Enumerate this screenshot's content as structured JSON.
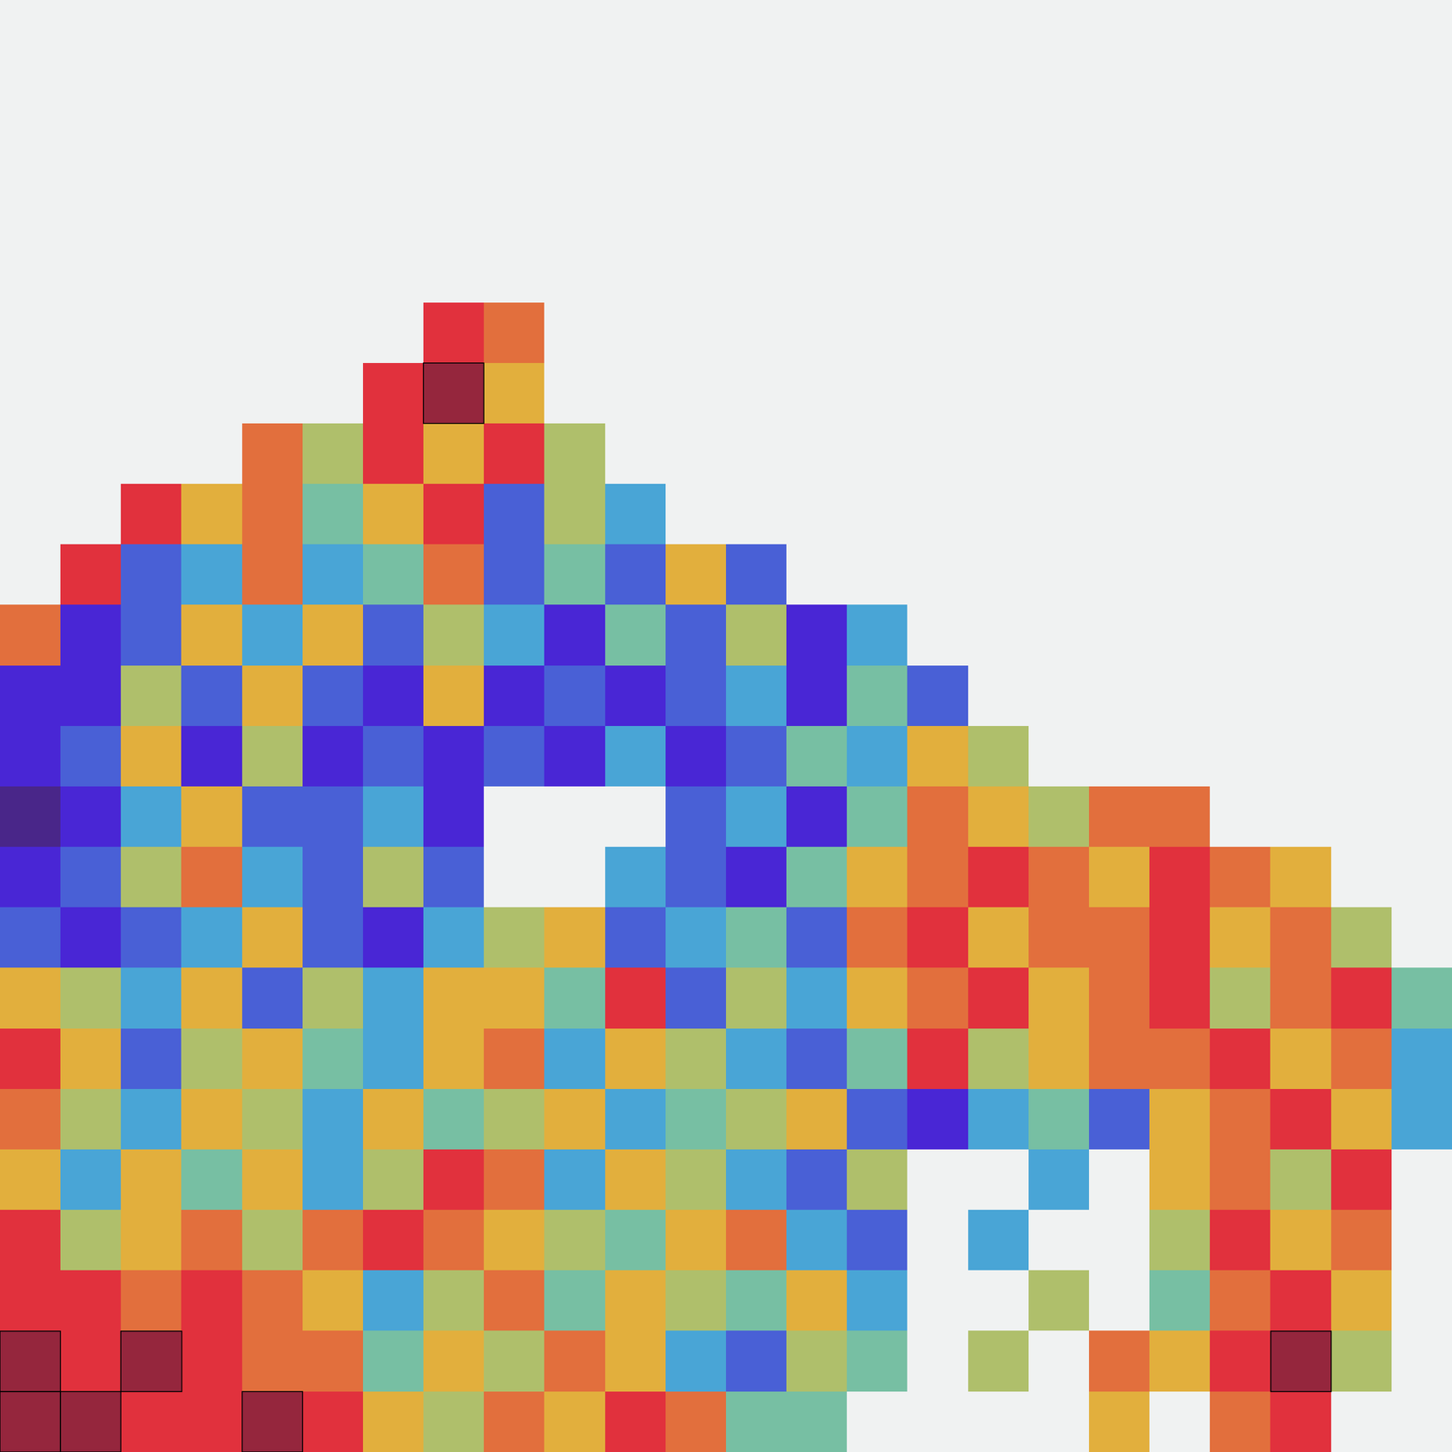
{
  "chart_data": {
    "type": "heatmap",
    "tick_labels": false,
    "grid": false,
    "zlim": [
      0,
      9
    ],
    "cells": [
      [
        null,
        null,
        null,
        null,
        null,
        null,
        null,
        null,
        null,
        null,
        null,
        null,
        null,
        null,
        null,
        null,
        null,
        null,
        null,
        null,
        null,
        null,
        null,
        null
      ],
      [
        null,
        null,
        null,
        null,
        null,
        null,
        null,
        null,
        null,
        null,
        null,
        null,
        null,
        null,
        null,
        null,
        null,
        null,
        null,
        null,
        null,
        null,
        null,
        null
      ],
      [
        null,
        null,
        null,
        null,
        null,
        null,
        null,
        null,
        null,
        null,
        null,
        null,
        null,
        null,
        null,
        null,
        null,
        null,
        null,
        null,
        null,
        null,
        null,
        null
      ],
      [
        null,
        null,
        null,
        null,
        null,
        null,
        null,
        null,
        null,
        null,
        null,
        null,
        null,
        null,
        null,
        null,
        null,
        null,
        null,
        null,
        null,
        null,
        null,
        null
      ],
      [
        null,
        null,
        null,
        null,
        null,
        null,
        null,
        null,
        null,
        null,
        null,
        null,
        null,
        null,
        null,
        null,
        null,
        null,
        null,
        null,
        null,
        null,
        null,
        null
      ],
      [
        null,
        null,
        null,
        null,
        null,
        null,
        null,
        8,
        7,
        null,
        null,
        null,
        null,
        null,
        null,
        null,
        null,
        null,
        null,
        null,
        null,
        null,
        null,
        null
      ],
      [
        null,
        null,
        null,
        null,
        null,
        null,
        8,
        9,
        6,
        null,
        null,
        null,
        null,
        null,
        null,
        null,
        null,
        null,
        null,
        null,
        null,
        null,
        null,
        null
      ],
      [
        null,
        null,
        null,
        null,
        7,
        5,
        8,
        6,
        8,
        5,
        null,
        null,
        null,
        null,
        null,
        null,
        null,
        null,
        null,
        null,
        null,
        null,
        null,
        null
      ],
      [
        null,
        null,
        8,
        6,
        7,
        4,
        6,
        8,
        2,
        5,
        3,
        null,
        null,
        null,
        null,
        null,
        null,
        null,
        null,
        null,
        null,
        null,
        null,
        null
      ],
      [
        null,
        8,
        2,
        3,
        7,
        3,
        4,
        7,
        2,
        4,
        2,
        6,
        2,
        null,
        null,
        null,
        null,
        null,
        null,
        null,
        null,
        null,
        null,
        null
      ],
      [
        7,
        1,
        2,
        6,
        3,
        6,
        2,
        5,
        3,
        1,
        4,
        2,
        5,
        1,
        3,
        null,
        null,
        null,
        null,
        null,
        null,
        null,
        null,
        null
      ],
      [
        1,
        1,
        5,
        2,
        6,
        2,
        1,
        6,
        1,
        2,
        1,
        2,
        3,
        1,
        4,
        2,
        null,
        null,
        null,
        null,
        null,
        null,
        null,
        null
      ],
      [
        1,
        2,
        6,
        1,
        5,
        1,
        2,
        1,
        2,
        1,
        3,
        1,
        2,
        4,
        3,
        6,
        5,
        null,
        null,
        null,
        null,
        null,
        null,
        null
      ],
      [
        0,
        1,
        3,
        6,
        2,
        2,
        3,
        1,
        null,
        null,
        null,
        2,
        3,
        1,
        4,
        7,
        6,
        5,
        7,
        7,
        null,
        null,
        null,
        null
      ],
      [
        1,
        2,
        5,
        7,
        3,
        2,
        5,
        2,
        null,
        null,
        3,
        2,
        1,
        4,
        6,
        7,
        8,
        7,
        6,
        8,
        7,
        6,
        null,
        null
      ],
      [
        2,
        1,
        2,
        3,
        6,
        2,
        1,
        3,
        5,
        6,
        2,
        3,
        4,
        2,
        7,
        8,
        6,
        7,
        7,
        8,
        6,
        7,
        5,
        null
      ],
      [
        6,
        5,
        3,
        6,
        2,
        5,
        3,
        6,
        6,
        4,
        8,
        2,
        5,
        3,
        6,
        7,
        8,
        6,
        7,
        8,
        5,
        7,
        8,
        4
      ],
      [
        8,
        6,
        2,
        5,
        6,
        4,
        3,
        6,
        7,
        3,
        6,
        5,
        3,
        2,
        4,
        8,
        5,
        6,
        7,
        7,
        8,
        6,
        7,
        3
      ],
      [
        7,
        5,
        3,
        6,
        5,
        3,
        6,
        4,
        5,
        6,
        3,
        4,
        5,
        6,
        2,
        1,
        3,
        4,
        2,
        6,
        7,
        8,
        6,
        3
      ],
      [
        6,
        3,
        6,
        4,
        6,
        3,
        5,
        8,
        7,
        3,
        6,
        5,
        3,
        2,
        5,
        null,
        null,
        3,
        null,
        6,
        7,
        5,
        8,
        null
      ],
      [
        8,
        5,
        6,
        7,
        5,
        7,
        8,
        7,
        6,
        5,
        4,
        6,
        7,
        3,
        2,
        null,
        3,
        null,
        null,
        5,
        8,
        6,
        7,
        null
      ],
      [
        8,
        8,
        7,
        8,
        7,
        6,
        3,
        5,
        7,
        4,
        6,
        5,
        4,
        6,
        3,
        null,
        null,
        5,
        null,
        4,
        7,
        8,
        6,
        null
      ],
      [
        9,
        8,
        9,
        8,
        7,
        7,
        4,
        6,
        5,
        7,
        6,
        3,
        2,
        5,
        4,
        null,
        5,
        null,
        7,
        6,
        8,
        9,
        5,
        null
      ],
      [
        9,
        9,
        8,
        8,
        9,
        8,
        6,
        5,
        7,
        6,
        8,
        7,
        4,
        4,
        null,
        null,
        null,
        null,
        6,
        null,
        7,
        8,
        null,
        null
      ]
    ]
  }
}
